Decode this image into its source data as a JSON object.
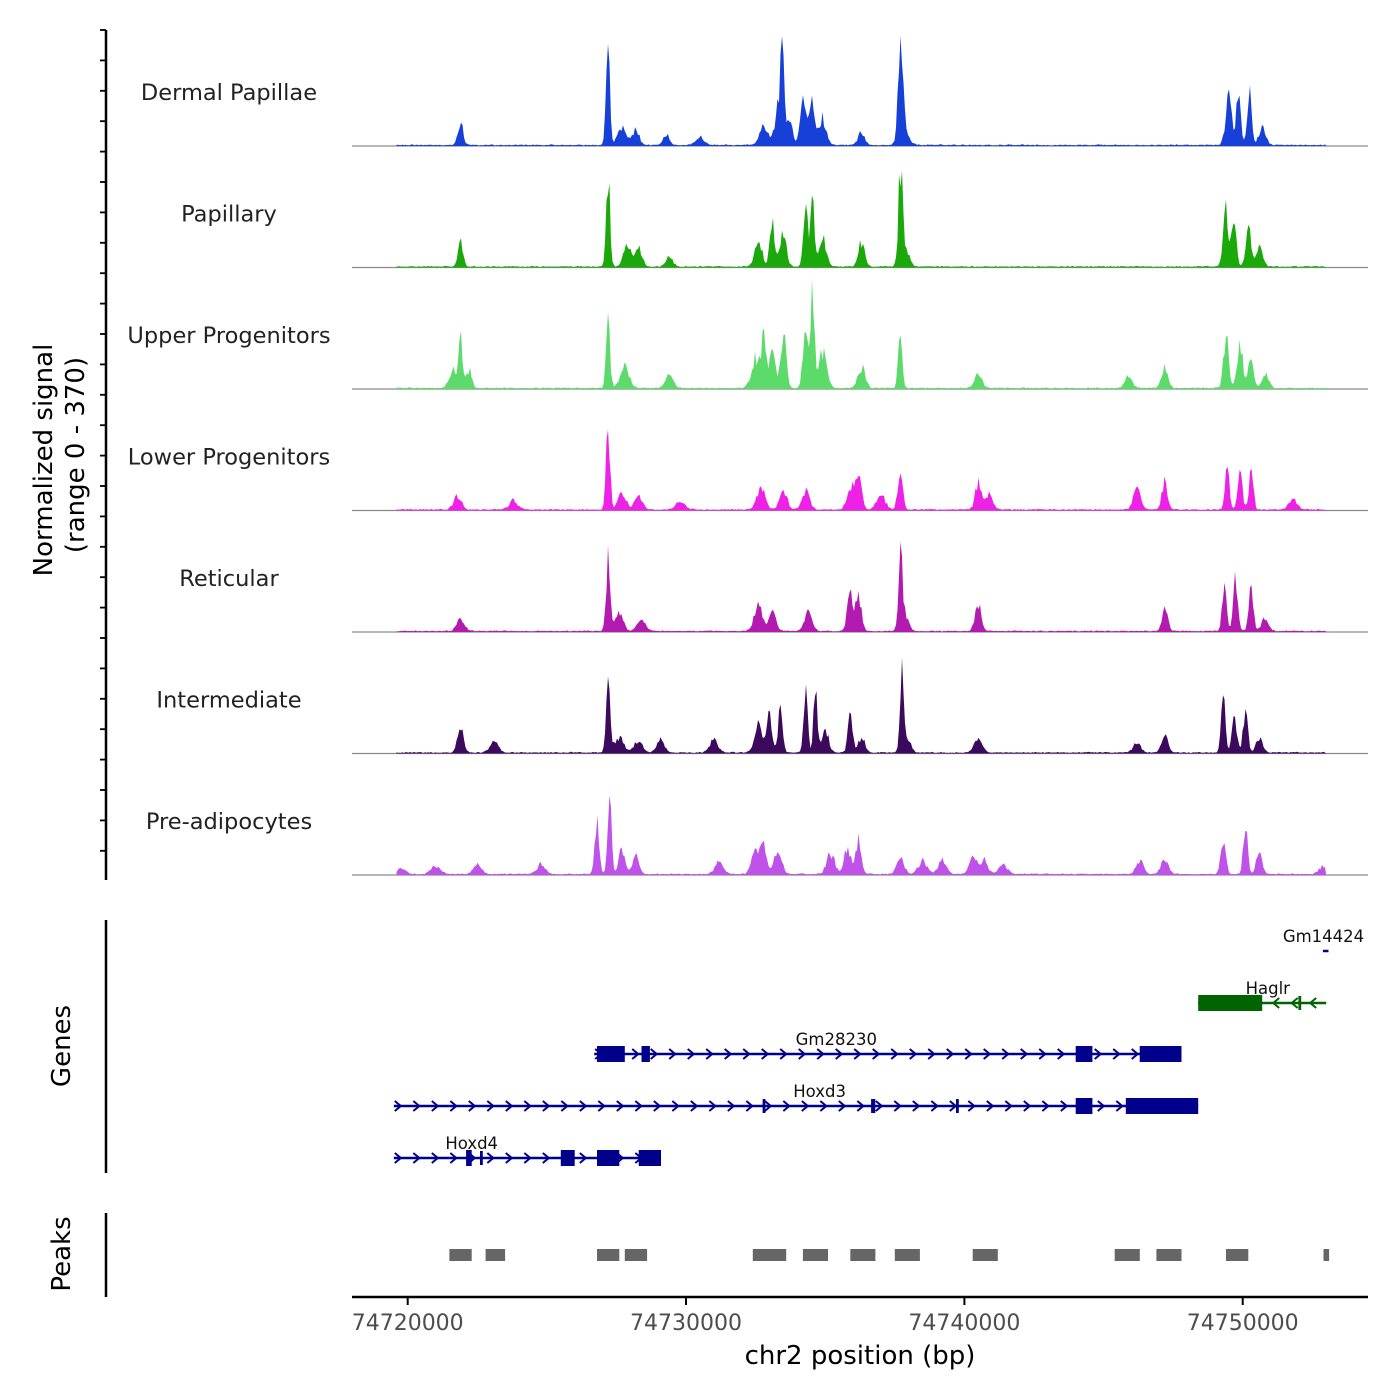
{
  "chart_data": {
    "type": "area",
    "title": "",
    "xlabel": "chr2 position (bp)",
    "ylabel": "Normalized signal",
    "ylabel_range": "(range 0 - 370)",
    "xlim": [
      74718000,
      74754500
    ],
    "ylim": [
      0,
      370
    ],
    "x_ticks": [
      74720000,
      74730000,
      74740000,
      74750000
    ],
    "x_tick_labels": [
      "74720000",
      "74730000",
      "74740000",
      "74750000"
    ],
    "tracks": [
      {
        "name": "Dermal Papillae",
        "color": "#1740d8",
        "peaks": [
          [
            74721900,
            75,
            90
          ],
          [
            74727200,
            300,
            70
          ],
          [
            74727700,
            60,
            150
          ],
          [
            74728200,
            55,
            120
          ],
          [
            74729300,
            35,
            110
          ],
          [
            74730500,
            28,
            150
          ],
          [
            74732800,
            60,
            150
          ],
          [
            74733300,
            120,
            120
          ],
          [
            74733450,
            370,
            60
          ],
          [
            74733700,
            80,
            120
          ],
          [
            74734200,
            160,
            100
          ],
          [
            74734500,
            150,
            100
          ],
          [
            74734900,
            90,
            130
          ],
          [
            74736300,
            40,
            120
          ],
          [
            74737700,
            310,
            70
          ],
          [
            74737800,
            90,
            150
          ],
          [
            74749500,
            150,
            110
          ],
          [
            74749850,
            160,
            80
          ],
          [
            74750250,
            170,
            80
          ],
          [
            74750700,
            60,
            120
          ]
        ]
      },
      {
        "name": "Papillary",
        "color": "#1aa80a",
        "peaks": [
          [
            74721900,
            80,
            90
          ],
          [
            74727200,
            295,
            70
          ],
          [
            74727900,
            70,
            140
          ],
          [
            74728300,
            60,
            120
          ],
          [
            74729400,
            35,
            120
          ],
          [
            74732600,
            90,
            130
          ],
          [
            74733100,
            140,
            90
          ],
          [
            74733500,
            120,
            110
          ],
          [
            74734300,
            200,
            80
          ],
          [
            74734550,
            260,
            60
          ],
          [
            74734900,
            100,
            130
          ],
          [
            74736300,
            80,
            110
          ],
          [
            74737700,
            290,
            70
          ],
          [
            74737850,
            70,
            150
          ],
          [
            74749400,
            180,
            100
          ],
          [
            74749700,
            170,
            80
          ],
          [
            74750200,
            150,
            90
          ],
          [
            74750600,
            60,
            120
          ]
        ]
      },
      {
        "name": "Upper Progenitors",
        "color": "#5cda6a",
        "peaks": [
          [
            74721600,
            60,
            120
          ],
          [
            74721900,
            160,
            80
          ],
          [
            74722200,
            60,
            100
          ],
          [
            74727200,
            210,
            70
          ],
          [
            74727800,
            70,
            160
          ],
          [
            74729400,
            45,
            140
          ],
          [
            74732500,
            100,
            150
          ],
          [
            74732800,
            170,
            90
          ],
          [
            74733100,
            150,
            90
          ],
          [
            74733500,
            190,
            100
          ],
          [
            74734300,
            170,
            100
          ],
          [
            74734550,
            310,
            60
          ],
          [
            74734900,
            120,
            150
          ],
          [
            74736300,
            70,
            130
          ],
          [
            74737700,
            190,
            70
          ],
          [
            74740500,
            50,
            130
          ],
          [
            74745900,
            40,
            130
          ],
          [
            74747200,
            70,
            110
          ],
          [
            74749400,
            170,
            90
          ],
          [
            74749900,
            150,
            100
          ],
          [
            74750300,
            110,
            90
          ],
          [
            74750800,
            50,
            120
          ]
        ]
      },
      {
        "name": "Lower Progenitors",
        "color": "#ee22e6",
        "peaks": [
          [
            74721800,
            45,
            140
          ],
          [
            74723800,
            30,
            150
          ],
          [
            74727200,
            260,
            70
          ],
          [
            74727700,
            60,
            140
          ],
          [
            74728300,
            40,
            150
          ],
          [
            74729800,
            28,
            160
          ],
          [
            74732700,
            80,
            140
          ],
          [
            74733500,
            65,
            130
          ],
          [
            74734300,
            60,
            140
          ],
          [
            74735900,
            80,
            120
          ],
          [
            74736200,
            100,
            110
          ],
          [
            74737000,
            50,
            150
          ],
          [
            74737700,
            125,
            90
          ],
          [
            74740500,
            85,
            110
          ],
          [
            74740900,
            50,
            130
          ],
          [
            74746200,
            65,
            130
          ],
          [
            74747200,
            95,
            100
          ],
          [
            74749450,
            135,
            80
          ],
          [
            74749900,
            130,
            80
          ],
          [
            74750300,
            130,
            80
          ],
          [
            74751800,
            40,
            140
          ]
        ]
      },
      {
        "name": "Reticular",
        "color": "#b31ab0",
        "peaks": [
          [
            74721900,
            45,
            130
          ],
          [
            74727200,
            250,
            70
          ],
          [
            74727600,
            60,
            140
          ],
          [
            74728400,
            35,
            150
          ],
          [
            74732600,
            80,
            150
          ],
          [
            74733100,
            65,
            130
          ],
          [
            74734400,
            60,
            140
          ],
          [
            74735900,
            130,
            100
          ],
          [
            74736200,
            120,
            100
          ],
          [
            74737700,
            225,
            70
          ],
          [
            74737850,
            60,
            140
          ],
          [
            74740500,
            90,
            110
          ],
          [
            74747200,
            80,
            100
          ],
          [
            74749350,
            160,
            80
          ],
          [
            74749750,
            170,
            80
          ],
          [
            74750300,
            140,
            80
          ],
          [
            74750800,
            40,
            120
          ]
        ]
      },
      {
        "name": "Intermediate",
        "color": "#3c0a5c",
        "peaks": [
          [
            74721900,
            80,
            110
          ],
          [
            74723100,
            40,
            140
          ],
          [
            74727200,
            280,
            70
          ],
          [
            74727600,
            50,
            160
          ],
          [
            74728300,
            40,
            150
          ],
          [
            74729100,
            40,
            140
          ],
          [
            74731000,
            40,
            150
          ],
          [
            74732600,
            90,
            140
          ],
          [
            74733000,
            120,
            100
          ],
          [
            74733400,
            150,
            80
          ],
          [
            74734300,
            220,
            70
          ],
          [
            74734650,
            200,
            70
          ],
          [
            74735000,
            80,
            120
          ],
          [
            74735900,
            140,
            80
          ],
          [
            74736300,
            50,
            130
          ],
          [
            74737750,
            280,
            60
          ],
          [
            74737900,
            60,
            140
          ],
          [
            74740500,
            45,
            140
          ],
          [
            74746200,
            30,
            140
          ],
          [
            74747200,
            55,
            120
          ],
          [
            74749300,
            260,
            70
          ],
          [
            74749700,
            120,
            90
          ],
          [
            74750100,
            140,
            80
          ],
          [
            74750600,
            50,
            120
          ]
        ]
      },
      {
        "name": "Pre-adipocytes",
        "color": "#be52e9",
        "peaks": [
          [
            74719800,
            20,
            150
          ],
          [
            74721000,
            30,
            160
          ],
          [
            74722500,
            30,
            150
          ],
          [
            74724800,
            35,
            150
          ],
          [
            74726800,
            180,
            80
          ],
          [
            74727250,
            250,
            70
          ],
          [
            74727700,
            80,
            110
          ],
          [
            74728200,
            65,
            110
          ],
          [
            74731200,
            40,
            150
          ],
          [
            74732500,
            80,
            140
          ],
          [
            74732800,
            100,
            110
          ],
          [
            74733300,
            80,
            130
          ],
          [
            74735200,
            70,
            140
          ],
          [
            74735800,
            90,
            110
          ],
          [
            74736200,
            120,
            100
          ],
          [
            74737700,
            60,
            130
          ],
          [
            74738500,
            45,
            150
          ],
          [
            74739200,
            45,
            140
          ],
          [
            74740300,
            80,
            110
          ],
          [
            74740700,
            50,
            130
          ],
          [
            74741400,
            30,
            150
          ],
          [
            74746300,
            45,
            140
          ],
          [
            74747200,
            50,
            130
          ],
          [
            74749300,
            110,
            90
          ],
          [
            74750100,
            150,
            80
          ],
          [
            74750600,
            70,
            110
          ],
          [
            74752900,
            25,
            150
          ]
        ]
      }
    ],
    "genes": [
      {
        "name": "Gm14424",
        "strand": "+",
        "color": "#00008b",
        "start": 74752880,
        "end": 74753080,
        "label_pos": 74752900,
        "exons": []
      },
      {
        "name": "Haglr",
        "strand": "-",
        "color": "#006400",
        "start": 74748400,
        "end": 74753000,
        "label_pos": 74750900,
        "exons": [
          [
            74748400,
            74750700
          ],
          [
            74752000,
            74752100
          ]
        ]
      },
      {
        "name": "Gm28230",
        "strand": "+",
        "color": "#00008b",
        "start": 74726700,
        "end": 74747800,
        "label_pos": 74735400,
        "exons": [
          [
            74726800,
            74727800
          ],
          [
            74728400,
            74728700
          ],
          [
            74744000,
            74744600
          ],
          [
            74746300,
            74747800
          ]
        ]
      },
      {
        "name": "Hoxd3",
        "strand": "+",
        "color": "#00008b",
        "start": 74719500,
        "end": 74748400,
        "label_pos": 74734800,
        "exons": [
          [
            74732750,
            74732850
          ],
          [
            74736650,
            74736800
          ],
          [
            74739700,
            74739800
          ],
          [
            74744000,
            74744600
          ],
          [
            74745800,
            74748400
          ]
        ]
      },
      {
        "name": "Hoxd4",
        "strand": "+",
        "color": "#00008b",
        "start": 74719500,
        "end": 74729100,
        "label_pos": 74722300,
        "exons": [
          [
            74722100,
            74722300
          ],
          [
            74722600,
            74722700
          ],
          [
            74725500,
            74726000
          ],
          [
            74726800,
            74727600
          ],
          [
            74728300,
            74729100
          ]
        ]
      }
    ],
    "peaks_track": [
      [
        74721500,
        74722300
      ],
      [
        74722800,
        74723500
      ],
      [
        74726800,
        74727600
      ],
      [
        74727800,
        74728600
      ],
      [
        74732400,
        74733000
      ],
      [
        74733000,
        74733600
      ],
      [
        74734200,
        74735100
      ],
      [
        74735900,
        74736800
      ],
      [
        74737500,
        74738400
      ],
      [
        74740300,
        74741200
      ],
      [
        74745400,
        74746300
      ],
      [
        74746900,
        74747800
      ],
      [
        74749400,
        74750200
      ],
      [
        74752900,
        74753100
      ]
    ],
    "panel_labels": {
      "genes": "Genes",
      "peaks": "Peaks"
    }
  }
}
